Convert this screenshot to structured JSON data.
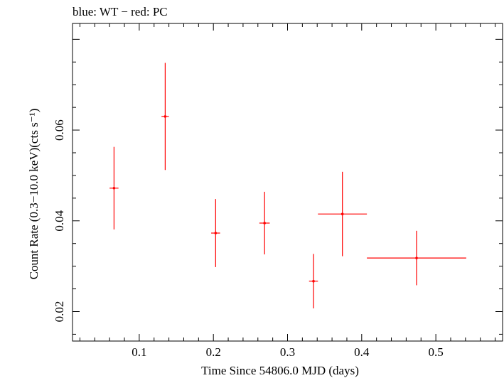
{
  "chart_data": {
    "type": "scatter",
    "title": "blue: WT − red: PC",
    "xlabel": "Time Since 54806.0 MJD (days)",
    "ylabel": "Count Rate (0.3−10.0 keV)(cts s⁻¹)",
    "xlim": [
      0.01,
      0.59
    ],
    "ylim": [
      0.0135,
      0.0835
    ],
    "x_ticks": [
      0.1,
      0.2,
      0.3,
      0.4,
      0.5
    ],
    "x_tick_labels": [
      "0.1",
      "0.2",
      "0.3",
      "0.4",
      "0.5"
    ],
    "y_ticks": [
      0.02,
      0.04,
      0.06
    ],
    "y_tick_labels": [
      "0.02",
      "0.04",
      "0.06"
    ],
    "grid": false,
    "legend": "none",
    "series": [
      {
        "color": "#ff0000",
        "points": [
          {
            "x": 0.066,
            "y": 0.0472,
            "xerr": 0.006,
            "yerr": 0.0091
          },
          {
            "x": 0.135,
            "y": 0.063,
            "xerr": 0.005,
            "yerr": 0.0118
          },
          {
            "x": 0.203,
            "y": 0.0373,
            "xerr": 0.006,
            "yerr": 0.0075
          },
          {
            "x": 0.269,
            "y": 0.0395,
            "xerr": 0.007,
            "yerr": 0.0069
          },
          {
            "x": 0.335,
            "y": 0.0267,
            "xerr": 0.006,
            "yerr": 0.006
          },
          {
            "x": 0.374,
            "y": 0.0415,
            "xerr": 0.033,
            "yerr": 0.0093
          },
          {
            "x": 0.474,
            "y": 0.0318,
            "xerr": 0.067,
            "yerr": 0.006
          }
        ]
      }
    ]
  }
}
